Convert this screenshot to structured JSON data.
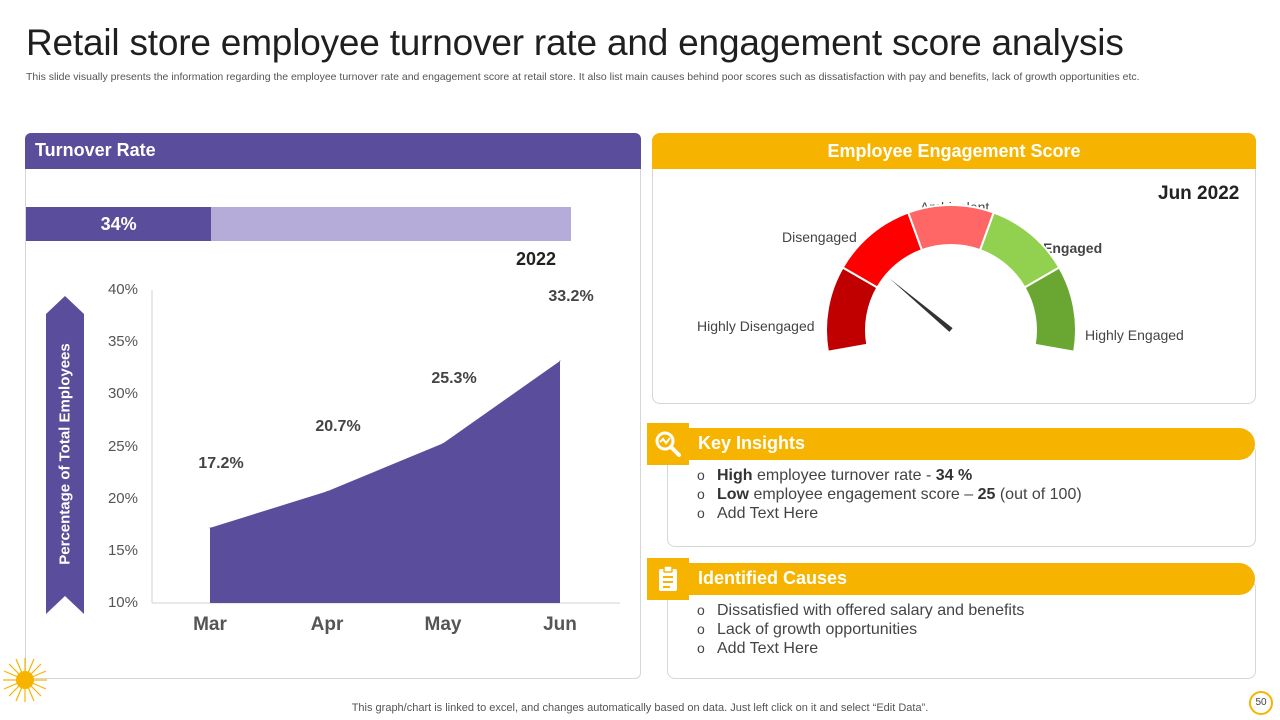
{
  "title": "Retail store employee turnover rate and engagement score analysis",
  "subtitle": "This slide visually presents the information regarding the employee turnover rate and engagement score at retail store. It also list main causes behind poor scores such as dissatisfaction with pay and benefits, lack of growth opportunities etc.",
  "turnover": {
    "header": "Turnover Rate",
    "rate_label": "34%",
    "rate_value": 34,
    "year": "2022"
  },
  "engagement": {
    "header": "Employee Engagement Score",
    "period": "Jun 2022",
    "score": 25,
    "max_score": 100,
    "segments": [
      {
        "label": "Highly Disengaged",
        "color": "#c00000"
      },
      {
        "label": "Disengaged",
        "color": "#ff0000"
      },
      {
        "label": "Ambivalent",
        "color": "#ff6666"
      },
      {
        "label": "Engaged",
        "color": "#92d050"
      },
      {
        "label": "Highly Engaged",
        "color": "#6aa632"
      }
    ]
  },
  "insights": {
    "header": "Key Insights",
    "icon": "magnifier-chart-icon",
    "item1": {
      "bold": "High",
      "text": " employee turnover  rate - ",
      "value": "34 %"
    },
    "item2": {
      "bold": "Low",
      "text": " employee engagement score – ",
      "value": "25",
      "suffix": " (out of 100)"
    },
    "item3": "Add Text Here"
  },
  "causes": {
    "header": "Identified Causes",
    "icon": "clipboard-icon",
    "items": [
      "Dissatisfied with offered salary and benefits",
      "Lack of growth opportunities",
      "Add Text Here"
    ]
  },
  "chart_data": {
    "type": "area",
    "categories": [
      "Mar",
      "Apr",
      "May",
      "Jun"
    ],
    "values": [
      17.2,
      20.7,
      25.3,
      33.2
    ],
    "data_labels": [
      "17.2%",
      "20.7%",
      "25.3%",
      "33.2%"
    ],
    "ylabel": "Percentage of Total Employees",
    "yticks": [
      "10%",
      "15%",
      "20%",
      "25%",
      "30%",
      "35%",
      "40%"
    ],
    "ylim": [
      10,
      40
    ],
    "color": "#5a4d9b",
    "grid": false
  },
  "footnote": "This graph/chart is linked to excel,  and changes automatically based on data. Just left click on it and select “Edit Data”.",
  "page_number": "50"
}
